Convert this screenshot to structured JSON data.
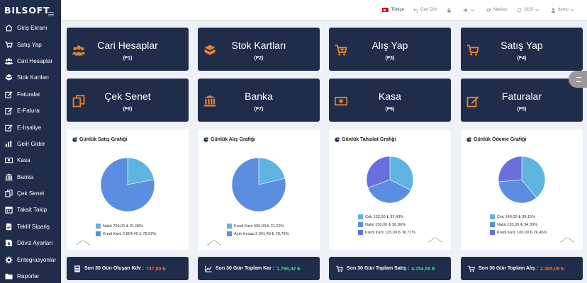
{
  "brand": "BILSOFT",
  "sidebar": {
    "items": [
      {
        "label": "Giriş Ekranı",
        "icon": "home-icon"
      },
      {
        "label": "Satış Yap",
        "icon": "cart-icon"
      },
      {
        "label": "Cari Hesaplar",
        "icon": "users-icon"
      },
      {
        "label": "Stok Kartları",
        "icon": "boxes-icon"
      },
      {
        "label": "Faturalar",
        "icon": "edit-icon"
      },
      {
        "label": "E-Fatura",
        "icon": "edit-icon"
      },
      {
        "label": "E-İrsaliye",
        "icon": "edit-icon"
      },
      {
        "label": "Gelir Gider",
        "icon": "bar-chart-icon"
      },
      {
        "label": "Kasa",
        "icon": "money-icon"
      },
      {
        "label": "Banka",
        "icon": "bank-icon"
      },
      {
        "label": "Çek Senet",
        "icon": "copy-icon"
      },
      {
        "label": "Taksit Takip",
        "icon": "calendar-icon"
      },
      {
        "label": "Teklif Sipariş",
        "icon": "document-icon"
      },
      {
        "label": "Döviz Ayarları",
        "icon": "dollar-icon"
      },
      {
        "label": "Entegrasyonlar",
        "icon": "gear-icon"
      },
      {
        "label": "Raporlar",
        "icon": "folder-icon"
      }
    ]
  },
  "topbar": {
    "language": "Türkçe",
    "back": "Geri Dön",
    "branch": "Merkez",
    "year": "2025",
    "user": "demo"
  },
  "tiles": [
    {
      "label": "Cari Hesaplar",
      "key": "(F1)",
      "icon": "users-icon"
    },
    {
      "label": "Stok Kartları",
      "key": "(F2)",
      "icon": "boxes-icon"
    },
    {
      "label": "Alış Yap",
      "key": "(F3)",
      "icon": "cart-plus-icon"
    },
    {
      "label": "Satış Yap",
      "key": "(F4)",
      "icon": "cart-icon"
    },
    {
      "label": "Çek Senet",
      "key": "(F8)",
      "icon": "copy-icon"
    },
    {
      "label": "Banka",
      "key": "(F7)",
      "icon": "bank-icon"
    },
    {
      "label": "Kasa",
      "key": "(F6)",
      "icon": "money-icon"
    },
    {
      "label": "Faturalar",
      "key": "(F5)",
      "icon": "edit-icon"
    }
  ],
  "charts": [
    {
      "title": "Günlük Satış Grafiği",
      "legend": [
        "Nakit 790,00 ₺ 21,98%",
        "Kredi Kartı 2.804,40 ₺ 78,02%"
      ]
    },
    {
      "title": "Günlük Alış Grafiği",
      "legend": [
        "Kredi Kartı 550,00 ₺ 21,22%",
        "Açık Hesap 2.041,40 ₺ 78,78%"
      ]
    },
    {
      "title": "Günlük Tahsilat Grafiği",
      "legend": [
        "Çek 132,00 ₺ 32,43%",
        "Nakit 150,00 ₺ 36,86%",
        "Kredi Kartı 125,00 ₺ 30,71%"
      ]
    },
    {
      "title": "Günlük Ödeme Grafiği",
      "legend": [
        "Çek 148,00 ₺ 39,15%",
        "Nakit 130,00 ₺ 34,39%",
        "Kredi Kartı 100,00 ₺ 26,46%"
      ]
    }
  ],
  "chart_data": [
    {
      "type": "pie",
      "title": "Günlük Satış Grafiği",
      "categories": [
        "Nakit",
        "Kredi Kartı"
      ],
      "values": [
        21.98,
        78.02
      ],
      "colors": [
        "#5fb3e0",
        "#5b8ee0"
      ]
    },
    {
      "type": "pie",
      "title": "Günlük Alış Grafiği",
      "categories": [
        "Kredi Kartı",
        "Açık Hesap"
      ],
      "values": [
        21.22,
        78.78
      ],
      "colors": [
        "#5fb3e0",
        "#5b8ee0"
      ]
    },
    {
      "type": "pie",
      "title": "Günlük Tahsilat Grafiği",
      "categories": [
        "Çek",
        "Nakit",
        "Kredi Kartı"
      ],
      "values": [
        32.43,
        36.86,
        30.71
      ],
      "colors": [
        "#5fb3e0",
        "#5b8ee0",
        "#6a6fe0"
      ]
    },
    {
      "type": "pie",
      "title": "Günlük Ödeme Grafiği",
      "categories": [
        "Çek",
        "Nakit",
        "Kredi Kartı"
      ],
      "values": [
        39.15,
        34.39,
        26.46
      ],
      "colors": [
        "#5fb3e0",
        "#5b8ee0",
        "#6a6fe0"
      ]
    }
  ],
  "summary": [
    {
      "label": "Son 30 Gün Oluşan Kdv :",
      "value": "747,80 ₺",
      "color": "red",
      "icon": "calculator-icon"
    },
    {
      "label": "Son 30 Gün Toplam Kar :",
      "value": "1.769,42 ₺",
      "color": "green",
      "icon": "line-chart-icon"
    },
    {
      "label": "Son 30 Gün Toplam Satış :",
      "value": "4.154,50 ₺",
      "color": "green",
      "icon": "cart-icon"
    },
    {
      "label": "Son 30 Gün Toplam Alış :",
      "value": "2.385,08 ₺",
      "color": "red",
      "icon": "cart-icon"
    }
  ]
}
